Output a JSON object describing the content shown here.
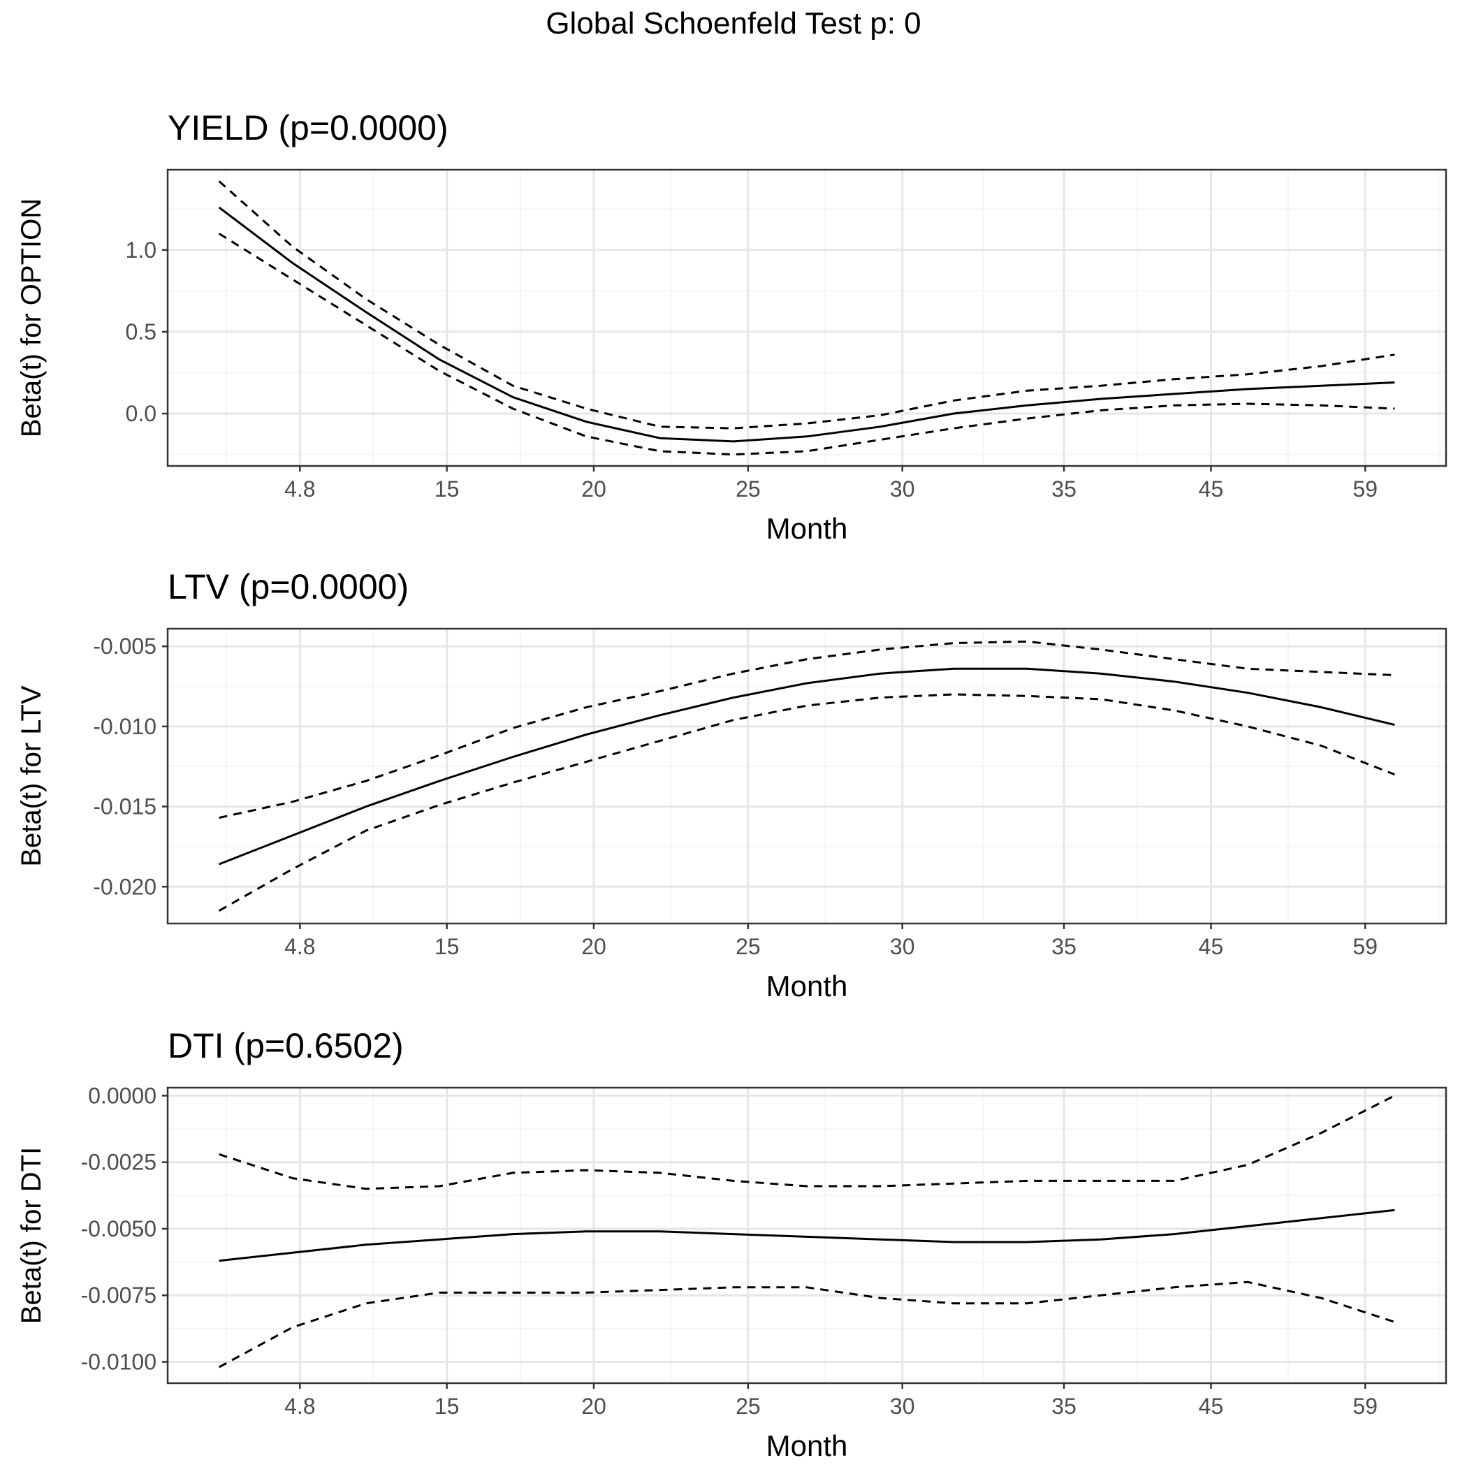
{
  "figure": {
    "title": "Global Schoenfeld Test p: 0"
  },
  "chart_data": [
    {
      "type": "line",
      "title": "YIELD (p=0.0000)",
      "xlabel": "Month",
      "ylabel": "Beta(t) for OPTION",
      "x_tick_labels": [
        "4.8",
        "15",
        "20",
        "25",
        "30",
        "35",
        "45",
        "59"
      ],
      "y_ticks": [
        0.0,
        0.5,
        1.0
      ],
      "y_tick_labels": [
        "0.0",
        "0.5",
        "1.0"
      ],
      "ylim": [
        -0.32,
        1.49
      ],
      "grid": true,
      "series": [
        {
          "role": "estimate",
          "linestyle": "solid",
          "x": [
            1,
            2,
            3,
            4,
            5,
            6,
            7,
            8,
            9,
            10,
            11,
            12,
            13,
            14,
            15,
            16,
            17
          ],
          "y": [
            1.26,
            0.92,
            0.62,
            0.33,
            0.1,
            -0.05,
            -0.15,
            -0.17,
            -0.14,
            -0.08,
            0.0,
            0.05,
            0.09,
            0.12,
            0.15,
            0.17,
            0.19
          ]
        },
        {
          "role": "upper",
          "linestyle": "dashed",
          "x": [
            1,
            2,
            3,
            4,
            5,
            6,
            7,
            8,
            9,
            10,
            11,
            12,
            13,
            14,
            15,
            16,
            17
          ],
          "y": [
            1.42,
            1.02,
            0.7,
            0.42,
            0.17,
            0.03,
            -0.08,
            -0.09,
            -0.06,
            -0.01,
            0.08,
            0.14,
            0.17,
            0.21,
            0.24,
            0.29,
            0.36
          ]
        },
        {
          "role": "lower",
          "linestyle": "dashed",
          "x": [
            1,
            2,
            3,
            4,
            5,
            6,
            7,
            8,
            9,
            10,
            11,
            12,
            13,
            14,
            15,
            16,
            17
          ],
          "y": [
            1.1,
            0.82,
            0.54,
            0.26,
            0.03,
            -0.14,
            -0.23,
            -0.25,
            -0.23,
            -0.16,
            -0.09,
            -0.03,
            0.02,
            0.05,
            0.06,
            0.05,
            0.03
          ]
        }
      ]
    },
    {
      "type": "line",
      "title": "LTV (p=0.0000)",
      "xlabel": "Month",
      "ylabel": "Beta(t) for LTV",
      "x_tick_labels": [
        "4.8",
        "15",
        "20",
        "25",
        "30",
        "35",
        "45",
        "59"
      ],
      "y_ticks": [
        -0.02,
        -0.015,
        -0.01,
        -0.005
      ],
      "y_tick_labels": [
        "-0.020",
        "-0.015",
        "-0.010",
        "-0.005"
      ],
      "ylim": [
        -0.0223,
        -0.0039
      ],
      "grid": true,
      "series": [
        {
          "role": "estimate",
          "linestyle": "solid",
          "x": [
            1,
            2,
            3,
            4,
            5,
            6,
            7,
            8,
            9,
            10,
            11,
            12,
            13,
            14,
            15,
            16,
            17
          ],
          "y": [
            -0.0186,
            -0.0168,
            -0.015,
            -0.0134,
            -0.0119,
            -0.0105,
            -0.0093,
            -0.0082,
            -0.0073,
            -0.0067,
            -0.0064,
            -0.0064,
            -0.0067,
            -0.0072,
            -0.0079,
            -0.0088,
            -0.0099
          ]
        },
        {
          "role": "upper",
          "linestyle": "dashed",
          "x": [
            1,
            2,
            3,
            4,
            5,
            6,
            7,
            8,
            9,
            10,
            11,
            12,
            13,
            14,
            15,
            16,
            17
          ],
          "y": [
            -0.0157,
            -0.0147,
            -0.0134,
            -0.0118,
            -0.0101,
            -0.0088,
            -0.0078,
            -0.0067,
            -0.0058,
            -0.0052,
            -0.0048,
            -0.0047,
            -0.0052,
            -0.0058,
            -0.0064,
            -0.0066,
            -0.0068
          ]
        },
        {
          "role": "lower",
          "linestyle": "dashed",
          "x": [
            1,
            2,
            3,
            4,
            5,
            6,
            7,
            8,
            9,
            10,
            11,
            12,
            13,
            14,
            15,
            16,
            17
          ],
          "y": [
            -0.0215,
            -0.0189,
            -0.0165,
            -0.0149,
            -0.0135,
            -0.0122,
            -0.0109,
            -0.0096,
            -0.0087,
            -0.0082,
            -0.008,
            -0.0081,
            -0.0083,
            -0.009,
            -0.01,
            -0.0112,
            -0.013
          ]
        }
      ]
    },
    {
      "type": "line",
      "title": "DTI (p=0.6502)",
      "xlabel": "Month",
      "ylabel": "Beta(t) for DTI",
      "x_tick_labels": [
        "4.8",
        "15",
        "20",
        "25",
        "30",
        "35",
        "45",
        "59"
      ],
      "y_ticks": [
        -0.01,
        -0.0075,
        -0.005,
        -0.0025,
        0.0
      ],
      "y_tick_labels": [
        "-0.0100",
        "-0.0075",
        "-0.0050",
        "-0.0025",
        "0.0000"
      ],
      "ylim": [
        -0.0108,
        0.0003
      ],
      "grid": true,
      "series": [
        {
          "role": "estimate",
          "linestyle": "solid",
          "x": [
            1,
            2,
            3,
            4,
            5,
            6,
            7,
            8,
            9,
            10,
            11,
            12,
            13,
            14,
            15,
            16,
            17
          ],
          "y": [
            -0.0062,
            -0.0059,
            -0.0056,
            -0.0054,
            -0.0052,
            -0.0051,
            -0.0051,
            -0.0052,
            -0.0053,
            -0.0054,
            -0.0055,
            -0.0055,
            -0.0054,
            -0.0052,
            -0.0049,
            -0.0046,
            -0.0043
          ]
        },
        {
          "role": "upper",
          "linestyle": "dashed",
          "x": [
            1,
            2,
            3,
            4,
            5,
            6,
            7,
            8,
            9,
            10,
            11,
            12,
            13,
            14,
            15,
            16,
            17
          ],
          "y": [
            -0.0022,
            -0.0031,
            -0.0035,
            -0.0034,
            -0.0029,
            -0.0028,
            -0.0029,
            -0.0032,
            -0.0034,
            -0.0034,
            -0.0033,
            -0.0032,
            -0.0032,
            -0.0032,
            -0.0026,
            -0.0014,
            0.0
          ]
        },
        {
          "role": "lower",
          "linestyle": "dashed",
          "x": [
            1,
            2,
            3,
            4,
            5,
            6,
            7,
            8,
            9,
            10,
            11,
            12,
            13,
            14,
            15,
            16,
            17
          ],
          "y": [
            -0.0102,
            -0.0087,
            -0.0078,
            -0.0074,
            -0.0074,
            -0.0074,
            -0.0073,
            -0.0072,
            -0.0072,
            -0.0076,
            -0.0078,
            -0.0078,
            -0.0075,
            -0.0072,
            -0.007,
            -0.0076,
            -0.0085
          ]
        }
      ]
    }
  ]
}
